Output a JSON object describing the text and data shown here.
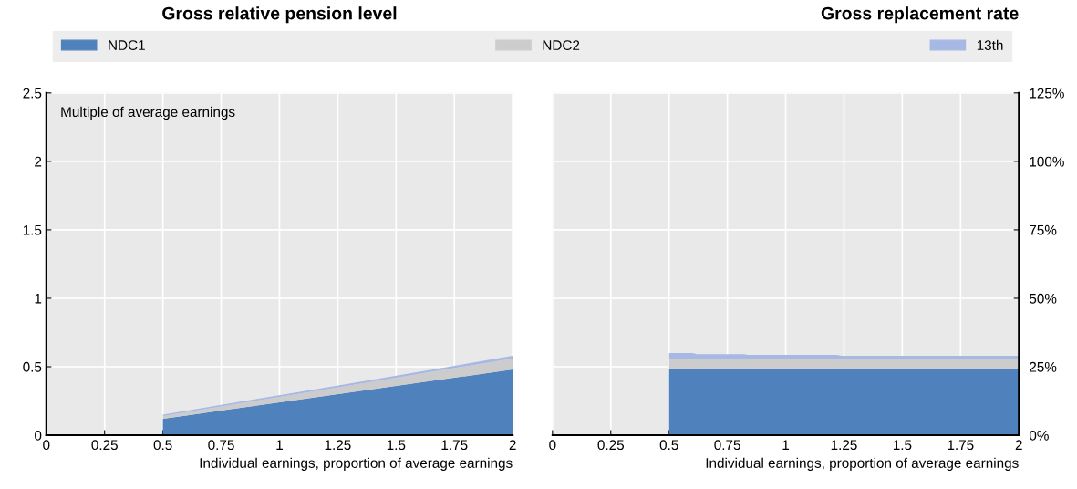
{
  "chart_data": [
    {
      "type": "area",
      "title": "Gross relative pension level",
      "xlabel": "Individual earnings, proportion of average earnings",
      "annotations": [
        "Multiple of average earnings"
      ],
      "stacked": true,
      "legend": "top",
      "grid": true,
      "xlim": [
        0,
        2
      ],
      "xticks": [
        0,
        0.25,
        0.5,
        0.75,
        1,
        1.25,
        1.5,
        1.75,
        2
      ],
      "ylim": [
        0,
        2.5
      ],
      "yticks": [
        0,
        0.5,
        1,
        1.5,
        2,
        2.5
      ],
      "series": [
        {
          "name": "NDC1",
          "color": "#4f81bd",
          "x": [
            0.5,
            0.6,
            0.82,
            1.23,
            2
          ],
          "values": [
            0.12,
            0.144,
            0.197,
            0.295,
            0.48
          ]
        },
        {
          "name": "NDC2",
          "color": "#cccccc",
          "x": [
            0.5,
            0.6,
            0.82,
            1.23,
            2
          ],
          "values": [
            0.02,
            0.024,
            0.033,
            0.049,
            0.08
          ]
        },
        {
          "name": "13th",
          "color": "#a6b8e3",
          "x": [
            0.5,
            0.6,
            0.82,
            1.23,
            2
          ],
          "values": [
            0.01,
            0.01,
            0.011,
            0.012,
            0.02
          ]
        }
      ]
    },
    {
      "type": "area",
      "title": "Gross replacement rate",
      "xlabel": "Individual earnings, proportion of average earnings",
      "stacked": true,
      "grid": true,
      "xlim": [
        0,
        2
      ],
      "xticks": [
        0,
        0.25,
        0.5,
        0.75,
        1,
        1.25,
        1.5,
        1.75,
        2
      ],
      "ylim": [
        0,
        125
      ],
      "yticks": [
        {
          "value": 0,
          "label": "0%"
        },
        {
          "value": 25,
          "label": "25%"
        },
        {
          "value": 50,
          "label": "50%"
        },
        {
          "value": 75,
          "label": "75%"
        },
        {
          "value": 100,
          "label": "100%"
        },
        {
          "value": 125,
          "label": "125%"
        }
      ],
      "series": [
        {
          "color": "#4f81bd",
          "x": [
            0.5,
            0.6,
            0.62,
            0.82,
            0.84,
            1.22,
            1.24,
            2
          ],
          "values": [
            24,
            24,
            24,
            24,
            24,
            24,
            24,
            24
          ]
        },
        {
          "color": "#cccccc",
          "x": [
            0.5,
            0.6,
            0.62,
            0.82,
            0.84,
            1.22,
            1.24,
            2
          ],
          "values": [
            4,
            4,
            4,
            4,
            4,
            4,
            4,
            4
          ]
        },
        {
          "color": "#a6b8e3",
          "x": [
            0.5,
            0.6,
            0.62,
            0.82,
            0.84,
            1.22,
            1.24,
            2
          ],
          "values": [
            2,
            2,
            1.6,
            1.6,
            1.3,
            1.3,
            1.0,
            1.0
          ]
        }
      ]
    }
  ]
}
